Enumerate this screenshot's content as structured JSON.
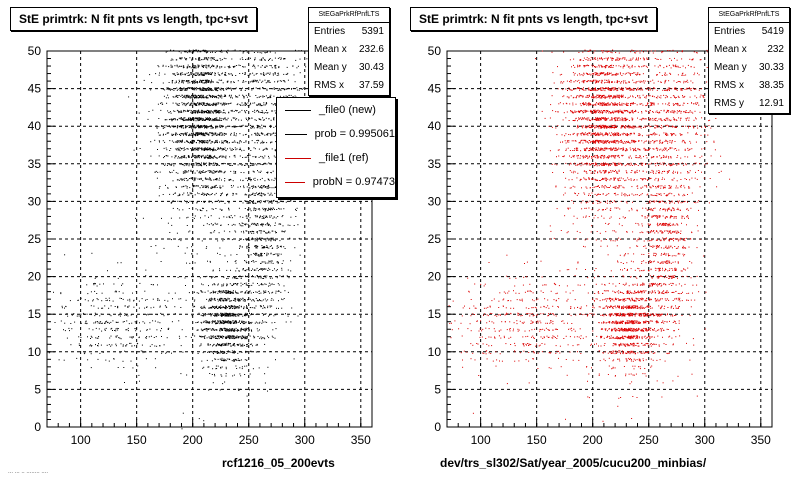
{
  "panels": [
    {
      "title": "StE primtrk: N fit pnts vs length, tpc+svt",
      "stats": {
        "header": "StEGaPrkRfPnfLTS",
        "rows": [
          {
            "label": "Entries",
            "value": "5391"
          },
          {
            "label": "Mean x",
            "value": "232.6"
          },
          {
            "label": "Mean y",
            "value": "30.43"
          },
          {
            "label": "RMS x",
            "value": "37.59"
          }
        ]
      },
      "legend": [
        {
          "label": "_file0 (new)",
          "color": "#000000"
        },
        {
          "label": "prob = 0.995061",
          "color": "#000000"
        },
        {
          "label": "_file1 (ref)",
          "color": "#cc0000"
        },
        {
          "label": "probN = 0.97473",
          "color": "#cc0000"
        }
      ],
      "caption": "rcf1216_05_200evts"
    },
    {
      "title": "StE primtrk: N fit pnts vs length, tpc+svt",
      "stats": {
        "header": "StEGaPrkRfPnfLTS",
        "rows": [
          {
            "label": "Entries",
            "value": "5419"
          },
          {
            "label": "Mean x",
            "value": "232"
          },
          {
            "label": "Mean y",
            "value": "30.33"
          },
          {
            "label": "RMS x",
            "value": "38.35"
          },
          {
            "label": "RMS y",
            "value": "12.91"
          }
        ]
      },
      "caption": "dev/trs_sl302/Sat/year_2005/cucu200_minbias/"
    }
  ],
  "footer_note": "... ... .. ........ ....",
  "chart_data": [
    {
      "type": "scatter",
      "title": "StE primtrk: N fit pnts vs length, tpc+svt",
      "xlabel": "rcf1216_05_200evts",
      "ylabel": "",
      "xlim": [
        70,
        360
      ],
      "ylim": [
        0,
        50
      ],
      "x_ticks": [
        "100",
        "150",
        "200",
        "250",
        "300",
        "350"
      ],
      "y_ticks": [
        "0",
        "5",
        "10",
        "15",
        "20",
        "25",
        "30",
        "35",
        "40",
        "45",
        "50"
      ],
      "grid": true,
      "color": "#000000",
      "entries": 5391,
      "clusters": [
        {
          "x": 207,
          "y": 41,
          "sx": 16,
          "sy": 6,
          "weight": 0.42
        },
        {
          "x": 262,
          "y": 44,
          "sx": 18,
          "sy": 5,
          "weight": 0.12
        },
        {
          "x": 262,
          "y": 26,
          "sx": 12,
          "sy": 7,
          "weight": 0.16
        },
        {
          "x": 230,
          "y": 14,
          "sx": 12,
          "sy": 3,
          "weight": 0.2
        },
        {
          "x": 135,
          "y": 14,
          "sx": 30,
          "sy": 3,
          "weight": 0.07
        },
        {
          "x": 200,
          "y": 26,
          "sx": 25,
          "sy": 12,
          "weight": 0.03
        }
      ]
    },
    {
      "type": "scatter",
      "title": "StE primtrk: N fit pnts vs length, tpc+svt",
      "xlabel": "dev/trs_sl302/Sat/year_2005/cucu200_minbias/",
      "ylabel": "",
      "xlim": [
        70,
        360
      ],
      "ylim": [
        0,
        50
      ],
      "x_ticks": [
        "100",
        "150",
        "200",
        "250",
        "300",
        "350"
      ],
      "y_ticks": [
        "0",
        "5",
        "10",
        "15",
        "20",
        "25",
        "30",
        "35",
        "40",
        "45",
        "50"
      ],
      "grid": true,
      "color": "#dd0000",
      "entries": 5419,
      "clusters": [
        {
          "x": 210,
          "y": 41,
          "sx": 18,
          "sy": 6,
          "weight": 0.4
        },
        {
          "x": 268,
          "y": 42,
          "sx": 20,
          "sy": 6,
          "weight": 0.14
        },
        {
          "x": 264,
          "y": 25,
          "sx": 12,
          "sy": 7,
          "weight": 0.15
        },
        {
          "x": 232,
          "y": 14,
          "sx": 13,
          "sy": 3,
          "weight": 0.19
        },
        {
          "x": 140,
          "y": 14,
          "sx": 32,
          "sy": 3,
          "weight": 0.08
        },
        {
          "x": 210,
          "y": 26,
          "sx": 30,
          "sy": 12,
          "weight": 0.04
        }
      ]
    }
  ]
}
